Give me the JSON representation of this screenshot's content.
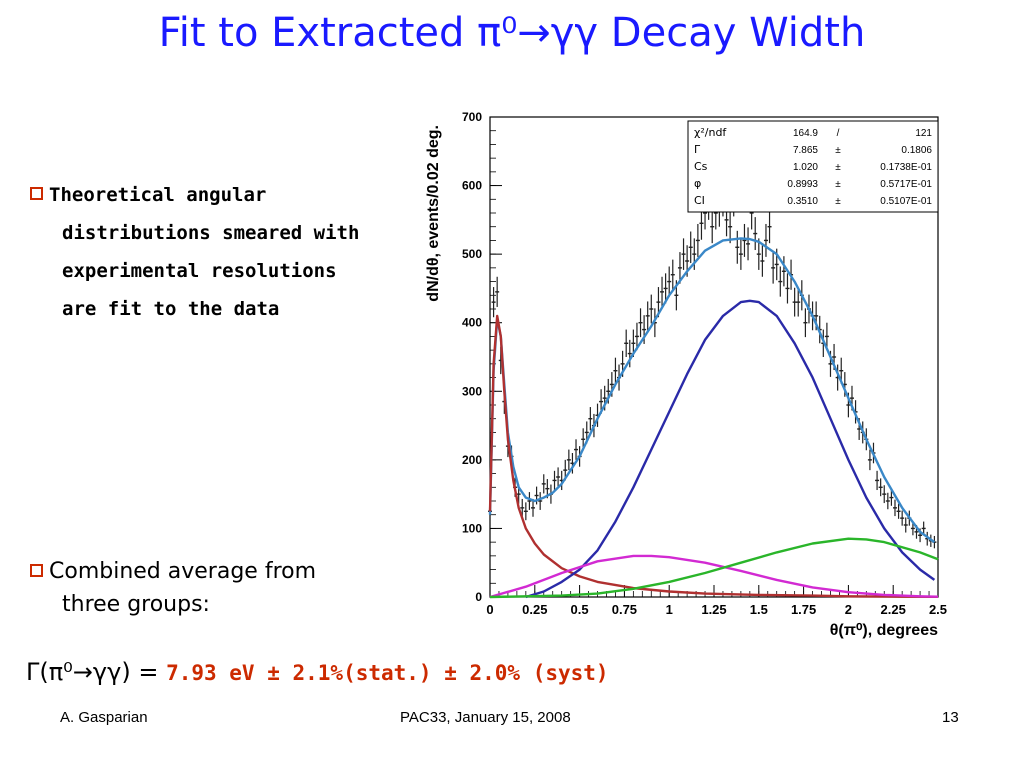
{
  "slide": {
    "title": "Fit to Extracted π⁰→γγ Decay Width",
    "bullet1_first": "Theoretical angular",
    "bullet1_lines": [
      "distributions smeared with",
      "experimental resolutions",
      "are fit to the data"
    ],
    "bullet2_first": "Combined average from",
    "bullet2_line": "three groups:",
    "result_lhs": "Γ(π⁰→γγ) =",
    "result_value": "7.93 eV ± 2.1%(stat.) ± 2.0% (syst)",
    "footer_left": "A. Gasparian",
    "footer_center": "PAC33, January 15, 2008",
    "footer_right": "13",
    "colors": {
      "title": "#1a1aff",
      "accent": "#cc2a00"
    }
  },
  "chart_data": {
    "type": "scatter",
    "xlabel": "θ(π⁰), degrees",
    "ylabel": "dN/dθ, events/0.02 deg.",
    "xlim": [
      0,
      2.5
    ],
    "ylim": [
      0,
      700
    ],
    "xticks": [
      "0",
      "0.25",
      "0.5",
      "0.75",
      "1",
      "1.25",
      "1.5",
      "1.75",
      "2",
      "2.25",
      "2.5"
    ],
    "yticks": [
      "0",
      "100",
      "200",
      "300",
      "400",
      "500",
      "600",
      "700"
    ],
    "stats_box": [
      {
        "name": "χ²/ndf",
        "value": "164.9",
        "sep": "/",
        "error": "121"
      },
      {
        "name": "Γ",
        "value": "7.865",
        "sep": "±",
        "error": "0.1806"
      },
      {
        "name": "Cs",
        "value": "1.020",
        "sep": "±",
        "error": "0.1738E-01"
      },
      {
        "name": "φ",
        "value": "0.8993",
        "sep": "±",
        "error": "0.5717E-01"
      },
      {
        "name": "CI",
        "value": "0.3510",
        "sep": "±",
        "error": "0.5107E-01"
      }
    ],
    "series": [
      {
        "color": "#3a88c8",
        "x": [
          0.0,
          0.02,
          0.04,
          0.06,
          0.08,
          0.1,
          0.13,
          0.16,
          0.2,
          0.25,
          0.3,
          0.35,
          0.4,
          0.5,
          0.6,
          0.7,
          0.8,
          0.9,
          1.0,
          1.1,
          1.2,
          1.3,
          1.4,
          1.45,
          1.5,
          1.6,
          1.7,
          1.8,
          1.9,
          2.0,
          2.1,
          2.2,
          2.3,
          2.4,
          2.48
        ],
        "y": [
          120,
          330,
          405,
          380,
          310,
          240,
          190,
          160,
          145,
          140,
          145,
          152,
          165,
          205,
          260,
          310,
          355,
          395,
          440,
          475,
          505,
          520,
          523,
          522,
          518,
          500,
          460,
          410,
          350,
          290,
          230,
          175,
          130,
          95,
          80
        ]
      },
      {
        "color": "#b03030",
        "x": [
          0.0,
          0.02,
          0.04,
          0.06,
          0.08,
          0.1,
          0.13,
          0.16,
          0.2,
          0.25,
          0.3,
          0.4,
          0.5,
          0.6,
          0.8,
          1.0,
          1.2,
          1.5,
          1.8,
          2.0,
          2.3,
          2.5
        ],
        "y": [
          125,
          340,
          410,
          380,
          300,
          230,
          170,
          130,
          100,
          78,
          62,
          42,
          30,
          22,
          13,
          8,
          5,
          3,
          2,
          1,
          0.5,
          0.3
        ]
      },
      {
        "color": "#2a2aa8",
        "x": [
          0.2,
          0.3,
          0.4,
          0.5,
          0.6,
          0.7,
          0.8,
          0.9,
          1.0,
          1.1,
          1.2,
          1.3,
          1.4,
          1.45,
          1.5,
          1.6,
          1.7,
          1.8,
          1.9,
          2.0,
          2.1,
          2.2,
          2.3,
          2.4,
          2.48
        ],
        "y": [
          0,
          8,
          22,
          40,
          68,
          110,
          160,
          215,
          270,
          325,
          375,
          410,
          430,
          432,
          430,
          410,
          370,
          320,
          260,
          200,
          145,
          100,
          65,
          40,
          25
        ]
      },
      {
        "color": "#d22ad2",
        "x": [
          0.0,
          0.2,
          0.4,
          0.6,
          0.8,
          0.9,
          1.0,
          1.2,
          1.4,
          1.6,
          1.8,
          2.0,
          2.2,
          2.4,
          2.5
        ],
        "y": [
          0,
          15,
          35,
          52,
          60,
          60,
          58,
          50,
          38,
          25,
          14,
          7,
          3,
          1,
          0.5
        ]
      },
      {
        "color": "#2ab52a",
        "x": [
          0.0,
          0.4,
          0.6,
          0.8,
          1.0,
          1.2,
          1.4,
          1.6,
          1.8,
          2.0,
          2.1,
          2.2,
          2.4,
          2.5
        ],
        "y": [
          0,
          2,
          5,
          12,
          22,
          35,
          50,
          65,
          78,
          85,
          84,
          80,
          65,
          55
        ]
      }
    ],
    "points": {
      "x": [
        0.0,
        0.02,
        0.04,
        0.06,
        0.08,
        0.1,
        0.12,
        0.14,
        0.16,
        0.18,
        0.2,
        0.22,
        0.24,
        0.26,
        0.28,
        0.3,
        0.32,
        0.34,
        0.36,
        0.38,
        0.4,
        0.42,
        0.44,
        0.46,
        0.48,
        0.5,
        0.52,
        0.54,
        0.56,
        0.58,
        0.6,
        0.62,
        0.64,
        0.66,
        0.68,
        0.7,
        0.72,
        0.74,
        0.76,
        0.78,
        0.8,
        0.82,
        0.84,
        0.86,
        0.88,
        0.9,
        0.92,
        0.94,
        0.96,
        0.98,
        1.0,
        1.02,
        1.04,
        1.06,
        1.08,
        1.1,
        1.12,
        1.14,
        1.16,
        1.18,
        1.2,
        1.22,
        1.24,
        1.26,
        1.28,
        1.3,
        1.32,
        1.34,
        1.36,
        1.38,
        1.4,
        1.42,
        1.44,
        1.46,
        1.48,
        1.5,
        1.52,
        1.54,
        1.56,
        1.58,
        1.6,
        1.62,
        1.64,
        1.66,
        1.68,
        1.7,
        1.72,
        1.74,
        1.76,
        1.78,
        1.8,
        1.82,
        1.84,
        1.86,
        1.88,
        1.9,
        1.92,
        1.94,
        1.96,
        1.98,
        2.0,
        2.02,
        2.04,
        2.06,
        2.08,
        2.1,
        2.12,
        2.14,
        2.16,
        2.18,
        2.2,
        2.22,
        2.24,
        2.26,
        2.28,
        2.3,
        2.32,
        2.34,
        2.36,
        2.38,
        2.4,
        2.42,
        2.44,
        2.46,
        2.48
      ],
      "y": [
        125,
        430,
        445,
        345,
        285,
        220,
        205,
        160,
        150,
        130,
        125,
        140,
        130,
        148,
        140,
        165,
        158,
        150,
        170,
        175,
        170,
        185,
        200,
        195,
        215,
        205,
        230,
        240,
        260,
        250,
        265,
        285,
        290,
        300,
        310,
        330,
        320,
        340,
        370,
        355,
        370,
        380,
        400,
        390,
        410,
        420,
        400,
        430,
        445,
        450,
        460,
        470,
        440,
        480,
        500,
        490,
        510,
        500,
        520,
        545,
        560,
        575,
        540,
        560,
        565,
        580,
        550,
        540,
        580,
        510,
        500,
        520,
        515,
        560,
        530,
        500,
        490,
        520,
        540,
        480,
        485,
        460,
        475,
        450,
        470,
        430,
        430,
        440,
        400,
        420,
        410,
        410,
        390,
        370,
        380,
        340,
        350,
        320,
        330,
        310,
        280,
        290,
        270,
        245,
        240,
        230,
        200,
        210,
        170,
        160,
        150,
        140,
        145,
        130,
        125,
        115,
        105,
        115,
        100,
        95,
        90,
        100,
        85,
        82,
        80
      ],
      "errors": [
        15,
        22,
        22,
        20,
        18,
        16,
        16,
        14,
        14,
        13,
        13,
        13,
        13,
        13,
        13,
        14,
        14,
        14,
        14,
        14,
        14,
        15,
        15,
        15,
        15,
        15,
        16,
        16,
        17,
        17,
        17,
        18,
        18,
        18,
        18,
        19,
        19,
        19,
        20,
        20,
        20,
        20,
        21,
        21,
        21,
        21,
        21,
        22,
        22,
        22,
        22,
        22,
        22,
        23,
        23,
        23,
        23,
        23,
        24,
        24,
        24,
        25,
        24,
        24,
        25,
        25,
        24,
        24,
        25,
        24,
        23,
        24,
        24,
        24,
        24,
        23,
        23,
        24,
        24,
        23,
        23,
        22,
        22,
        22,
        22,
        21,
        21,
        22,
        21,
        21,
        21,
        21,
        20,
        20,
        20,
        19,
        19,
        19,
        19,
        18,
        18,
        18,
        17,
        16,
        16,
        16,
        15,
        15,
        14,
        13,
        13,
        12,
        12,
        12,
        11,
        11,
        11,
        11,
        10,
        10,
        10,
        10,
        10,
        9,
        9
      ]
    }
  }
}
